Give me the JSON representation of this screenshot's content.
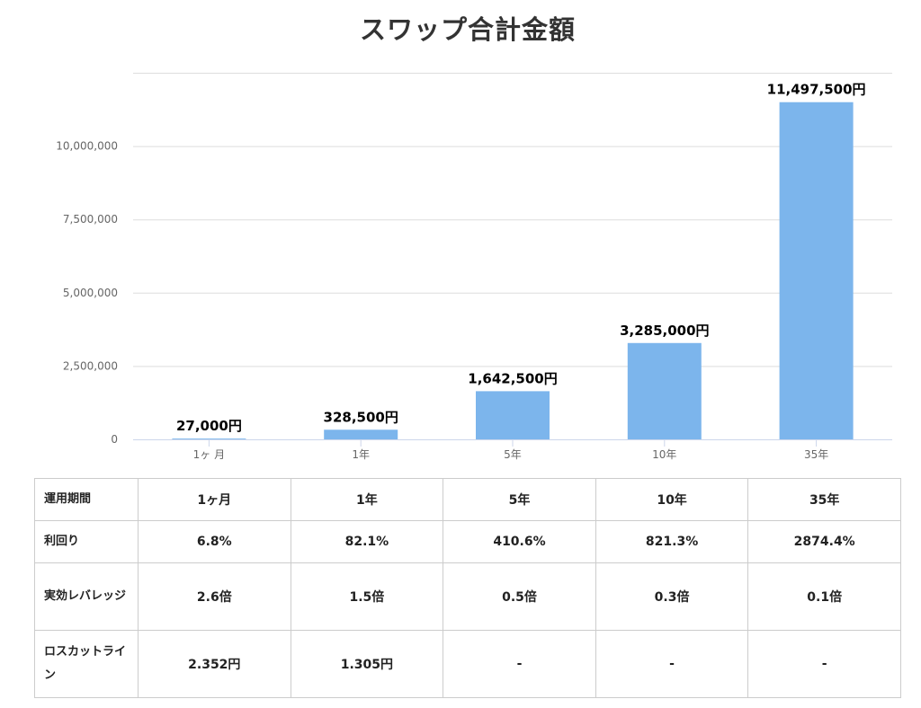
{
  "chart_data": {
    "type": "bar",
    "title": "スワップ合計金額",
    "categories": [
      "1ヶ 月",
      "1年",
      "5年",
      "10年",
      "35年"
    ],
    "values": [
      27000,
      328500,
      1642500,
      3285000,
      11497500
    ],
    "data_labels": [
      "27,000円",
      "328,500円",
      "1,642,500円",
      "3,285,000円",
      "11,497,500円"
    ],
    "ylim": [
      0,
      12500000
    ],
    "yticks": [
      0,
      2500000,
      5000000,
      7500000,
      10000000
    ],
    "ytick_labels": [
      "0",
      "2,500,000",
      "5,000,000",
      "7,500,000",
      "10,000,000"
    ],
    "grid": true,
    "bar_color": "#7cb5ec"
  },
  "table": {
    "columns": [
      "運用期間",
      "1ヶ月",
      "1年",
      "5年",
      "10年",
      "35年"
    ],
    "rows": [
      {
        "label": "利回り",
        "values": [
          "6.8%",
          "82.1%",
          "410.6%",
          "821.3%",
          "2874.4%"
        ]
      },
      {
        "label": "実効レバレッジ",
        "values": [
          "2.6倍",
          "1.5倍",
          "0.5倍",
          "0.3倍",
          "0.1倍"
        ]
      },
      {
        "label": "ロスカットライン",
        "values": [
          "2.352円",
          "1.305円",
          "-",
          "-",
          "-"
        ]
      }
    ]
  }
}
